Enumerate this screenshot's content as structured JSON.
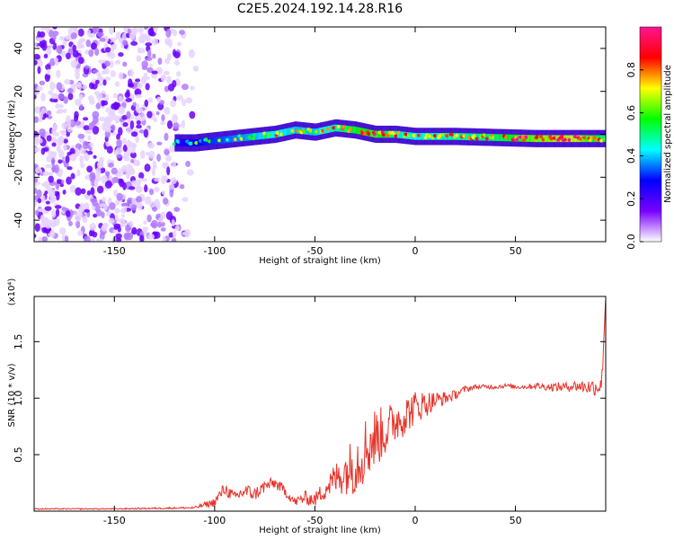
{
  "title": "C2E5.2024.192.14.28.R16",
  "chart_data": [
    {
      "type": "heatmap",
      "title": "C2E5.2024.192.14.28.R16",
      "xlabel": "Height of straight line (km)",
      "ylabel": "Frequency (Hz)",
      "xlim": [
        -190,
        95
      ],
      "ylim": [
        -50,
        50
      ],
      "x_ticks": [
        -150,
        -100,
        -50,
        0,
        50
      ],
      "y_ticks": [
        -40,
        -20,
        0,
        20,
        40
      ],
      "colorbar": {
        "label": "Normalized spectral amplitude",
        "range": [
          0,
          1
        ],
        "ticks": [
          "0.0",
          "0.2",
          "0.4",
          "0.6",
          "0.8"
        ],
        "colors": [
          "#ffffff",
          "#7a00ff",
          "#0000ff",
          "#00ffff",
          "#00ff00",
          "#ffff00",
          "#ff0000",
          "#ff1493"
        ]
      },
      "ridge": {
        "x": [
          -120,
          -110,
          -100,
          -90,
          -80,
          -70,
          -60,
          -50,
          -40,
          -30,
          -20,
          -10,
          0,
          20,
          40,
          60,
          80,
          95
        ],
        "frequency": [
          -4,
          -4,
          -3,
          -2,
          -1,
          0,
          2,
          1,
          3,
          2,
          0,
          0,
          -1,
          -1,
          -1.5,
          -2,
          -2,
          -2
        ],
        "amplitude": [
          0.3,
          0.35,
          0.4,
          0.45,
          0.5,
          0.55,
          0.5,
          0.5,
          0.6,
          0.7,
          0.75,
          0.6,
          0.55,
          0.6,
          0.65,
          0.8,
          0.85,
          0.6
        ]
      },
      "noise_region_x": [
        -190,
        -108
      ]
    },
    {
      "type": "line",
      "xlabel": "Height of straight line (km)",
      "ylabel": "SNR (10 * v/v)",
      "y_multiplier": "(x10⁴)",
      "xlim": [
        -190,
        95
      ],
      "ylim": [
        0,
        1.9
      ],
      "x_ticks": [
        -150,
        -100,
        -50,
        0,
        50
      ],
      "y_ticks": [
        0.5,
        1.0,
        1.5
      ],
      "y_tick_labels": [
        "0.5",
        "1.0",
        "1.5"
      ],
      "color": "#e8332a",
      "series": [
        {
          "x": [
            -190,
            -150,
            -110,
            -100,
            -95,
            -90,
            -85,
            -80,
            -75,
            -70,
            -65,
            -60,
            -55,
            -50,
            -45,
            -40,
            -35,
            -30,
            -25,
            -20,
            -15,
            -10,
            -5,
            0,
            5,
            10,
            15,
            20,
            25,
            30,
            35,
            40,
            45,
            50,
            55,
            60,
            65,
            70,
            75,
            80,
            85,
            90,
            93,
            95
          ],
          "values": [
            0.02,
            0.02,
            0.03,
            0.08,
            0.2,
            0.12,
            0.18,
            0.15,
            0.22,
            0.25,
            0.18,
            0.08,
            0.12,
            0.1,
            0.2,
            0.28,
            0.35,
            0.42,
            0.55,
            0.65,
            0.7,
            0.8,
            0.85,
            0.92,
            0.95,
            0.98,
            1.0,
            1.03,
            1.08,
            1.1,
            1.1,
            1.1,
            1.11,
            1.1,
            1.1,
            1.11,
            1.1,
            1.1,
            1.1,
            1.11,
            1.1,
            1.1,
            1.12,
            1.9
          ],
          "noise": [
            0.005,
            0.005,
            0.01,
            0.04,
            0.06,
            0.05,
            0.07,
            0.06,
            0.06,
            0.05,
            0.05,
            0.04,
            0.06,
            0.06,
            0.1,
            0.15,
            0.2,
            0.28,
            0.3,
            0.28,
            0.22,
            0.2,
            0.18,
            0.15,
            0.12,
            0.08,
            0.06,
            0.04,
            0.03,
            0.02,
            0.02,
            0.02,
            0.02,
            0.02,
            0.02,
            0.03,
            0.03,
            0.04,
            0.04,
            0.05,
            0.06,
            0.08,
            0.1,
            0.0
          ]
        }
      ]
    }
  ]
}
